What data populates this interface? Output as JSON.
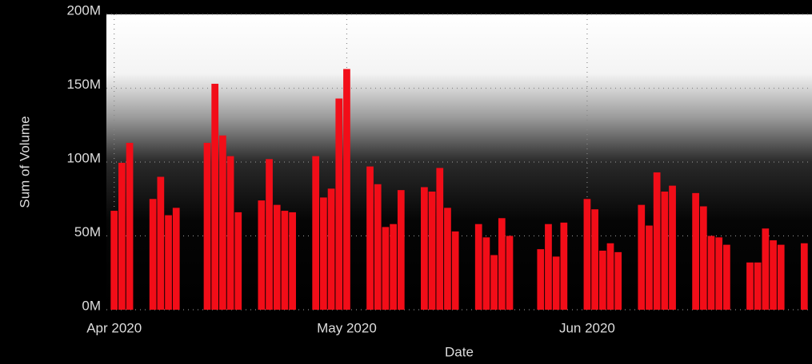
{
  "chart_data": {
    "type": "bar",
    "x_label": "Date",
    "y_label": "Sum of Volume",
    "x": [
      "2020-04-01",
      "2020-04-02",
      "2020-04-03",
      "2020-04-06",
      "2020-04-07",
      "2020-04-08",
      "2020-04-09",
      "2020-04-13",
      "2020-04-14",
      "2020-04-15",
      "2020-04-16",
      "2020-04-17",
      "2020-04-20",
      "2020-04-21",
      "2020-04-22",
      "2020-04-23",
      "2020-04-24",
      "2020-04-27",
      "2020-04-28",
      "2020-04-29",
      "2020-04-30",
      "2020-05-01",
      "2020-05-04",
      "2020-05-05",
      "2020-05-06",
      "2020-05-07",
      "2020-05-08",
      "2020-05-11",
      "2020-05-12",
      "2020-05-13",
      "2020-05-14",
      "2020-05-15",
      "2020-05-18",
      "2020-05-19",
      "2020-05-20",
      "2020-05-21",
      "2020-05-22",
      "2020-05-26",
      "2020-05-27",
      "2020-05-28",
      "2020-05-29",
      "2020-06-01",
      "2020-06-02",
      "2020-06-03",
      "2020-06-04",
      "2020-06-05",
      "2020-06-08",
      "2020-06-09",
      "2020-06-10",
      "2020-06-11",
      "2020-06-12",
      "2020-06-15",
      "2020-06-16",
      "2020-06-17",
      "2020-06-18",
      "2020-06-19",
      "2020-06-22",
      "2020-06-23",
      "2020-06-24",
      "2020-06-25",
      "2020-06-26",
      "2020-06-29"
    ],
    "values": [
      67,
      99.5,
      113,
      75,
      90,
      64,
      69,
      113,
      153,
      118,
      104,
      66,
      74,
      102,
      71,
      67,
      66,
      104,
      76,
      82,
      143,
      163,
      97,
      85,
      56,
      58,
      81,
      83,
      80,
      96,
      69,
      53,
      58,
      49,
      37,
      62,
      50,
      41,
      58,
      36,
      59,
      75,
      68,
      40,
      45,
      39,
      71,
      57,
      93,
      80,
      84,
      79,
      70,
      50,
      49,
      44,
      32,
      32,
      55,
      47,
      44,
      45
    ],
    "color": "#f20d18",
    "xlim": [
      "2020-03-31",
      "2020-06-30"
    ],
    "xticks": [
      {
        "value": "2020-04-01",
        "label": "Apr 2020"
      },
      {
        "value": "2020-05-01",
        "label": "May 2020"
      },
      {
        "value": "2020-06-01",
        "label": "Jun 2020"
      }
    ],
    "ylim": [
      0,
      200
    ],
    "yticks": [
      {
        "value": 0,
        "label": "0M"
      },
      {
        "value": 50,
        "label": "50M"
      },
      {
        "value": 100,
        "label": "100M"
      },
      {
        "value": 150,
        "label": "150M"
      },
      {
        "value": 200,
        "label": "200M"
      }
    ],
    "grid": true
  }
}
